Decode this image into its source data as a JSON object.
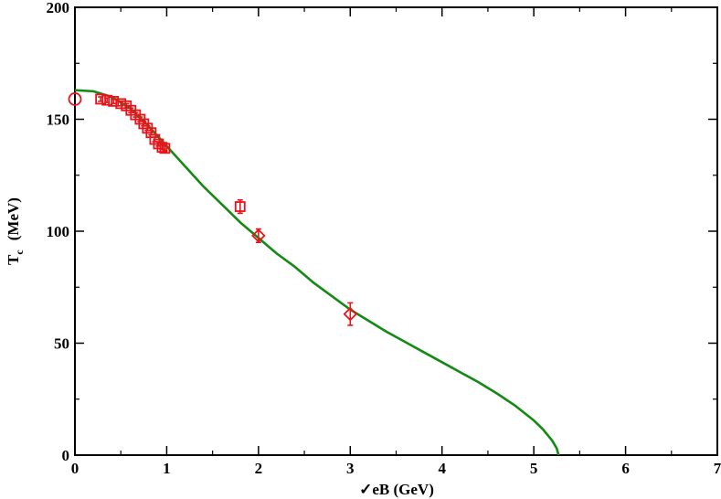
{
  "chart_data": {
    "type": "scatter",
    "title": "",
    "xlabel": "✓eB  (GeV)",
    "ylabel": {
      "main": "T",
      "sub": "c",
      "unit": "(MeV)"
    },
    "xlim": [
      0,
      7
    ],
    "ylim": [
      0,
      200
    ],
    "x_ticks": [
      0,
      1,
      2,
      3,
      4,
      5,
      6,
      7
    ],
    "y_ticks": [
      0,
      50,
      100,
      150,
      200
    ],
    "x_tick_labels": [
      "0",
      "1",
      "2",
      "3",
      "4",
      "5",
      "6",
      "7"
    ],
    "y_tick_labels": [
      "0",
      "50",
      "100",
      "150",
      "200"
    ],
    "grid": false,
    "colors": {
      "data": "#e8141c",
      "curve": "#138a13",
      "frame": "#000000"
    },
    "series": [
      {
        "marker": "circle",
        "points": [
          {
            "x": 0.0,
            "y": 159,
            "err": 0
          }
        ]
      },
      {
        "marker": "square",
        "points": [
          {
            "x": 0.28,
            "y": 159,
            "err": 1
          },
          {
            "x": 0.35,
            "y": 158.5,
            "err": 1
          },
          {
            "x": 0.42,
            "y": 158,
            "err": 1
          },
          {
            "x": 0.5,
            "y": 157,
            "err": 1
          },
          {
            "x": 0.56,
            "y": 156,
            "err": 1
          },
          {
            "x": 0.61,
            "y": 154,
            "err": 1
          },
          {
            "x": 0.66,
            "y": 152,
            "err": 1
          },
          {
            "x": 0.71,
            "y": 150,
            "err": 1
          },
          {
            "x": 0.75,
            "y": 148,
            "err": 1
          },
          {
            "x": 0.79,
            "y": 146,
            "err": 1
          },
          {
            "x": 0.83,
            "y": 144,
            "err": 1
          },
          {
            "x": 0.87,
            "y": 141,
            "err": 1
          },
          {
            "x": 0.91,
            "y": 139,
            "err": 1
          },
          {
            "x": 0.95,
            "y": 137.5,
            "err": 1
          },
          {
            "x": 0.98,
            "y": 137,
            "err": 1
          },
          {
            "x": 1.8,
            "y": 111,
            "err": 3
          }
        ]
      },
      {
        "marker": "diamond",
        "points": [
          {
            "x": 2.0,
            "y": 98,
            "err": 3
          },
          {
            "x": 3.0,
            "y": 63,
            "err": 5
          }
        ]
      },
      {
        "marker": "line",
        "points": [
          {
            "x": 0.0,
            "y": 163
          },
          {
            "x": 0.2,
            "y": 162.5
          },
          {
            "x": 0.4,
            "y": 160
          },
          {
            "x": 0.6,
            "y": 155
          },
          {
            "x": 0.8,
            "y": 147
          },
          {
            "x": 1.0,
            "y": 138
          },
          {
            "x": 1.2,
            "y": 129
          },
          {
            "x": 1.4,
            "y": 120
          },
          {
            "x": 1.6,
            "y": 112
          },
          {
            "x": 1.8,
            "y": 104
          },
          {
            "x": 2.0,
            "y": 97
          },
          {
            "x": 2.2,
            "y": 90
          },
          {
            "x": 2.4,
            "y": 84
          },
          {
            "x": 2.6,
            "y": 77
          },
          {
            "x": 2.8,
            "y": 71
          },
          {
            "x": 3.0,
            "y": 65
          },
          {
            "x": 3.2,
            "y": 60
          },
          {
            "x": 3.4,
            "y": 55
          },
          {
            "x": 3.6,
            "y": 50.5
          },
          {
            "x": 3.8,
            "y": 46
          },
          {
            "x": 4.0,
            "y": 41.5
          },
          {
            "x": 4.2,
            "y": 37
          },
          {
            "x": 4.4,
            "y": 32.5
          },
          {
            "x": 4.6,
            "y": 27.5
          },
          {
            "x": 4.8,
            "y": 22
          },
          {
            "x": 5.0,
            "y": 15.5
          },
          {
            "x": 5.1,
            "y": 11.5
          },
          {
            "x": 5.2,
            "y": 6.5
          },
          {
            "x": 5.25,
            "y": 3
          },
          {
            "x": 5.27,
            "y": 0
          }
        ]
      }
    ]
  }
}
